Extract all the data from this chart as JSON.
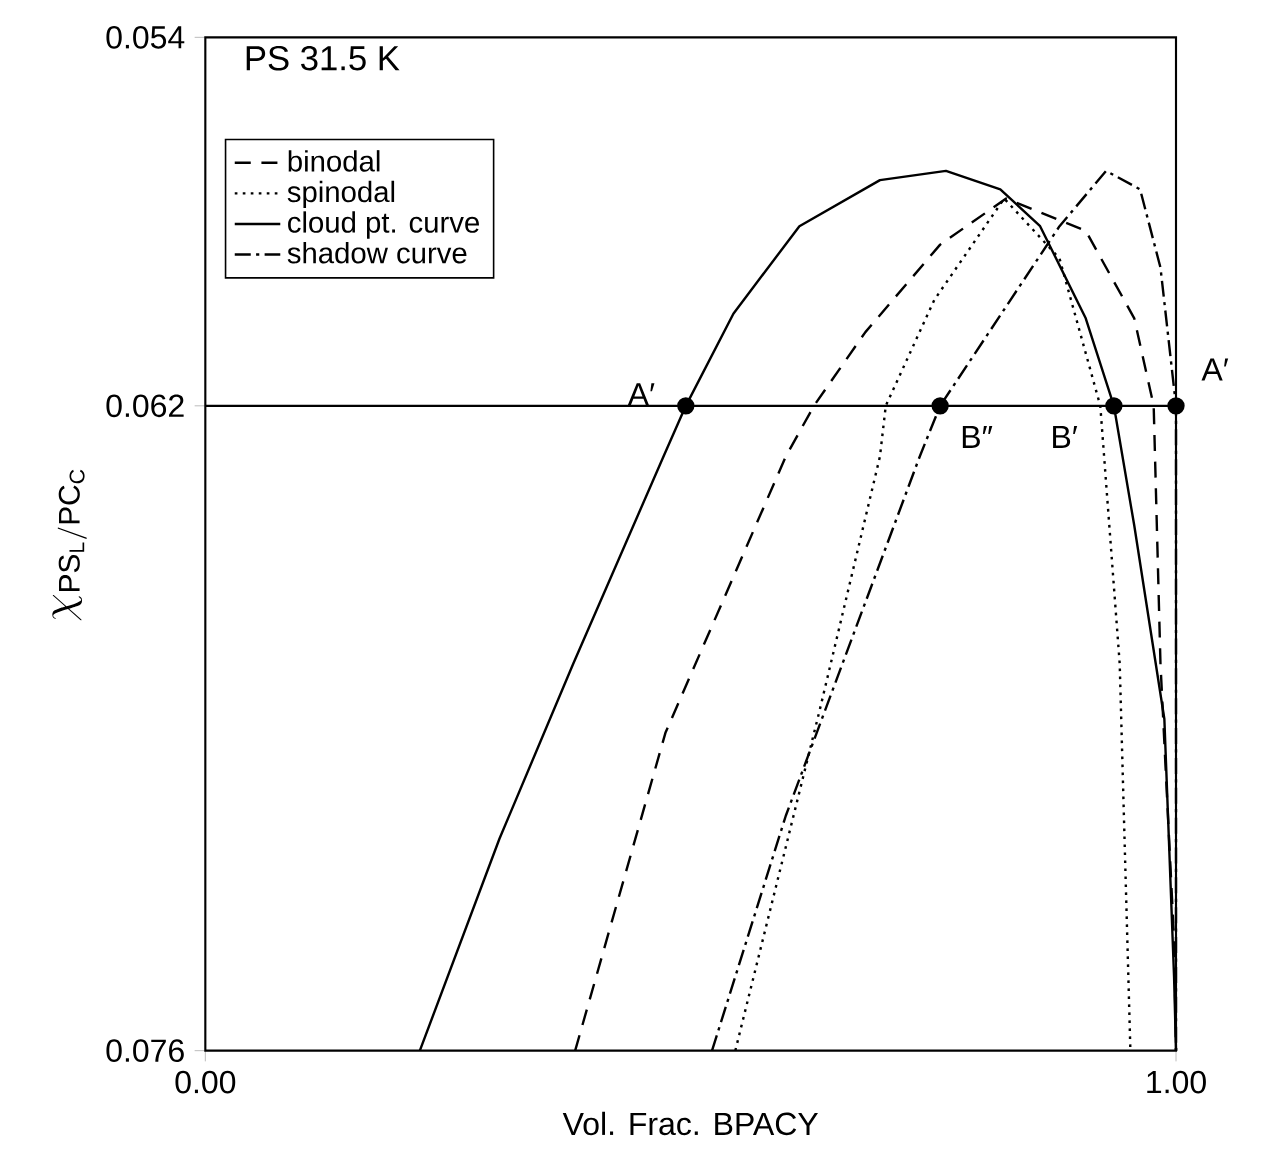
{
  "chart_data": {
    "type": "line",
    "title": "PS 31.5 K",
    "xlabel": "Vol. Frac. BPACY",
    "ylabel": "\\chi_{\\mathrm{PS_L/PC_C}}",
    "xlim": [
      0,
      1
    ],
    "ylim": [
      0.076,
      0.054
    ],
    "xticks": [
      {
        "value": 0,
        "label": "0.00"
      },
      {
        "value": 1,
        "label": "1.00"
      }
    ],
    "yticks": [
      {
        "value": 0.054,
        "label": "0.054"
      },
      {
        "value": 0.062,
        "label": "0.062"
      },
      {
        "value": 0.076,
        "label": "0.076"
      }
    ],
    "legend": "top left",
    "series": [
      {
        "name": "binodal",
        "color": "#000000",
        "line_style": "dashed",
        "x": [
          0.381,
          0.474,
          0.598,
          0.627,
          0.68,
          0.757,
          0.825,
          0.907,
          0.957,
          0.977,
          0.984,
          0.998,
          1.0
        ],
        "values": [
          0.076,
          0.0691,
          0.0631,
          0.062,
          0.0604,
          0.0585,
          0.0575,
          0.0582,
          0.0601,
          0.062,
          0.0676,
          0.0736,
          0.076
        ]
      },
      {
        "name": "spinodal",
        "color": "#000000",
        "line_style": "dotted",
        "x": [
          0.546,
          0.633,
          0.695,
          0.701,
          0.751,
          0.823,
          0.88,
          0.922,
          0.942,
          0.953
        ],
        "values": [
          0.076,
          0.0686,
          0.0631,
          0.062,
          0.0597,
          0.0575,
          0.0588,
          0.062,
          0.0676,
          0.076
        ]
      },
      {
        "name": "cloud pt. curve",
        "color": "#000000",
        "line_style": "solid",
        "x": [
          0.221,
          0.303,
          0.379,
          0.472,
          0.495,
          0.544,
          0.612,
          0.695,
          0.763,
          0.819,
          0.86,
          0.907,
          0.936,
          0.957,
          0.988,
          0.998,
          1.0
        ],
        "values": [
          0.076,
          0.0714,
          0.0676,
          0.0631,
          0.062,
          0.06,
          0.0581,
          0.0571,
          0.0569,
          0.0573,
          0.0581,
          0.0601,
          0.062,
          0.0646,
          0.0688,
          0.0744,
          0.076
        ]
      },
      {
        "name": "shadow curve",
        "color": "#000000",
        "line_style": "dashdot",
        "x": [
          0.522,
          0.598,
          0.736,
          0.757,
          0.88,
          0.928,
          0.963,
          0.984,
          1.0,
          1.0
        ],
        "values": [
          0.076,
          0.0709,
          0.0631,
          0.062,
          0.0581,
          0.0569,
          0.0573,
          0.059,
          0.062,
          0.076
        ]
      },
      {
        "type": "scatter",
        "color": "#000000",
        "marker": "circle",
        "x": [
          0.495,
          0.757,
          0.936,
          1.0
        ],
        "values": [
          0.062,
          0.062,
          0.062,
          0.062
        ]
      }
    ],
    "ref_lines": [
      {
        "axis": "y",
        "value": 0.062,
        "color": "#000000",
        "line_style": "solid"
      }
    ],
    "annotations": [
      {
        "text": "A′",
        "x": 0.495,
        "y": 0.062
      },
      {
        "text": "B″",
        "x": 0.757,
        "y": 0.062
      },
      {
        "text": "B′",
        "x": 0.936,
        "y": 0.062
      },
      {
        "text": "A′",
        "x": 1.0,
        "y": 0.062
      }
    ]
  }
}
